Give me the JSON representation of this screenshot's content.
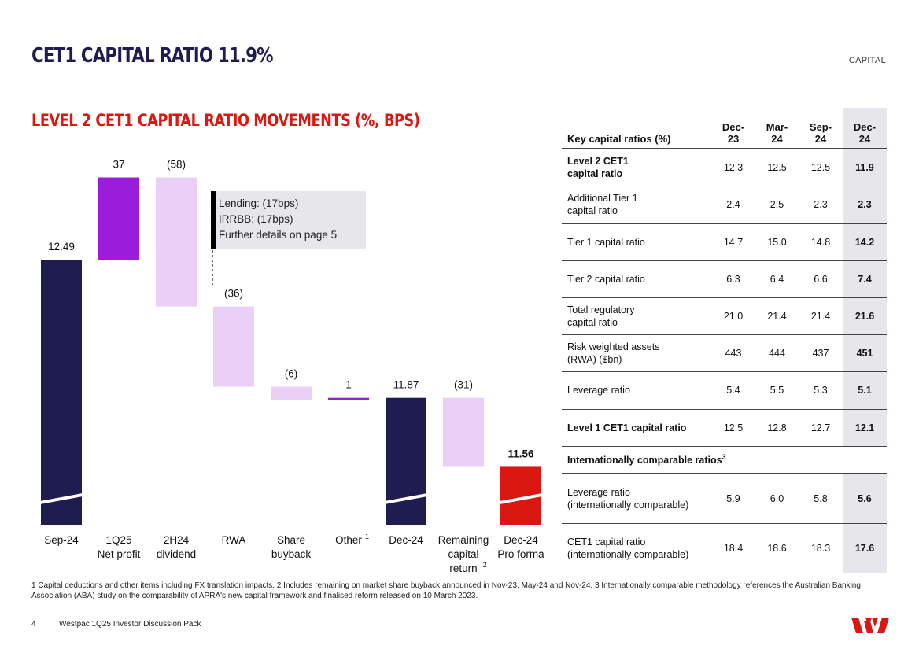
{
  "header": {
    "title": "CET1 CAPITAL RATIO 11.9%",
    "section": "CAPITAL"
  },
  "chart_data": {
    "type": "bar",
    "subtype": "waterfall",
    "title": "LEVEL 2 CET1 CAPITAL RATIO MOVEMENTS (%, BPS)",
    "categories": [
      [
        "Sep-24"
      ],
      [
        "1Q25",
        "Net profit"
      ],
      [
        "2H24",
        "dividend"
      ],
      [
        "RWA"
      ],
      [
        "Share",
        "buyback"
      ],
      [
        "Other"
      ],
      [
        "Dec-24"
      ],
      [
        "Remaining",
        "capital",
        "return"
      ],
      [
        "Dec-24",
        "Pro forma"
      ]
    ],
    "category_superscripts": [
      "",
      "",
      "",
      "",
      "",
      "1",
      "",
      "2",
      ""
    ],
    "bars": [
      {
        "kind": "total",
        "start": 0,
        "end": 12.49,
        "label": "12.49",
        "color": "#1f1c4f"
      },
      {
        "kind": "increase",
        "start": 12.49,
        "end": 12.86,
        "label": "37",
        "color": "#9b1ddb"
      },
      {
        "kind": "decrease",
        "start": 12.86,
        "end": 12.28,
        "label": "(58)",
        "color": "#ead0f7"
      },
      {
        "kind": "decrease",
        "start": 12.28,
        "end": 11.92,
        "label": "(36)",
        "color": "#ead0f7"
      },
      {
        "kind": "decrease",
        "start": 11.92,
        "end": 11.86,
        "label": "(6)",
        "color": "#ead0f7"
      },
      {
        "kind": "increase",
        "start": 11.86,
        "end": 11.87,
        "label": "1",
        "color": "#9b1ddb"
      },
      {
        "kind": "total",
        "start": 0,
        "end": 11.87,
        "label": "11.87",
        "color": "#1f1c4f"
      },
      {
        "kind": "decrease",
        "start": 11.87,
        "end": 11.56,
        "label": "(31)",
        "color": "#ead0f7"
      },
      {
        "kind": "total",
        "start": 0,
        "end": 11.56,
        "label": "11.56",
        "color": "#da1710",
        "label_bold": true
      }
    ],
    "axis_break": true,
    "ylim": [
      11.3,
      12.95
    ],
    "callout": [
      "Lending: (17bps)",
      "IRRBB: (17bps)",
      "Further details on page 5"
    ]
  },
  "table": {
    "header_label": "Key capital ratios (%)",
    "columns": [
      [
        "Dec-",
        "23"
      ],
      [
        "Mar-",
        "24"
      ],
      [
        "Sep-",
        "24"
      ],
      [
        "Dec-",
        "24"
      ]
    ],
    "rows": [
      {
        "label": [
          "Level 2 CET1",
          "capital ratio"
        ],
        "bold": true,
        "values": [
          "12.3",
          "12.5",
          "12.5",
          "11.9"
        ]
      },
      {
        "label": [
          "Additional Tier 1",
          "capital ratio"
        ],
        "values": [
          "2.4",
          "2.5",
          "2.3",
          "2.3"
        ]
      },
      {
        "label": [
          "Tier 1 capital ratio"
        ],
        "values": [
          "14.7",
          "15.0",
          "14.8",
          "14.2"
        ]
      },
      {
        "label": [
          "Tier 2 capital ratio"
        ],
        "values": [
          "6.3",
          "6.4",
          "6.6",
          "7.4"
        ]
      },
      {
        "label": [
          "Total regulatory",
          "capital ratio"
        ],
        "values": [
          "21.0",
          "21.4",
          "21.4",
          "21.6"
        ]
      },
      {
        "label": [
          "Risk weighted assets",
          "(RWA) ($bn)"
        ],
        "values": [
          "443",
          "444",
          "437",
          "451"
        ]
      },
      {
        "label": [
          "Leverage ratio"
        ],
        "values": [
          "5.4",
          "5.5",
          "5.3",
          "5.1"
        ]
      },
      {
        "label": [
          "Level 1 CET1 capital ratio"
        ],
        "bold": true,
        "values": [
          "12.5",
          "12.8",
          "12.7",
          "12.1"
        ]
      }
    ],
    "section_label": "Internationally comparable ratios",
    "section_sup": "3",
    "rows2": [
      {
        "label": [
          "Leverage ratio",
          "(internationally comparable)"
        ],
        "values": [
          "5.9",
          "6.0",
          "5.8",
          "5.6"
        ]
      },
      {
        "label": [
          "CET1 capital ratio",
          "(internationally comparable)"
        ],
        "values": [
          "18.4",
          "18.6",
          "18.3",
          "17.6"
        ]
      }
    ]
  },
  "footnote": "1 Capital deductions and other items including FX translation impacts. 2 Includes remaining on market share buyback announced in Nov-23, May-24 and Nov-24. 3 Internationally comparable methodology references the Australian Banking Association (ABA) study on the comparability of APRA's new capital framework and finalised reform released on 10 March 2023.",
  "footer": {
    "page_number": "4",
    "doc_title": "Westpac 1Q25 Investor Discussion Pack"
  },
  "brand": {
    "navy": "#1f1c4f",
    "red": "#da1710",
    "purple": "#9b1ddb",
    "lilac": "#ead0f7",
    "grey": "#e7e6ea"
  }
}
